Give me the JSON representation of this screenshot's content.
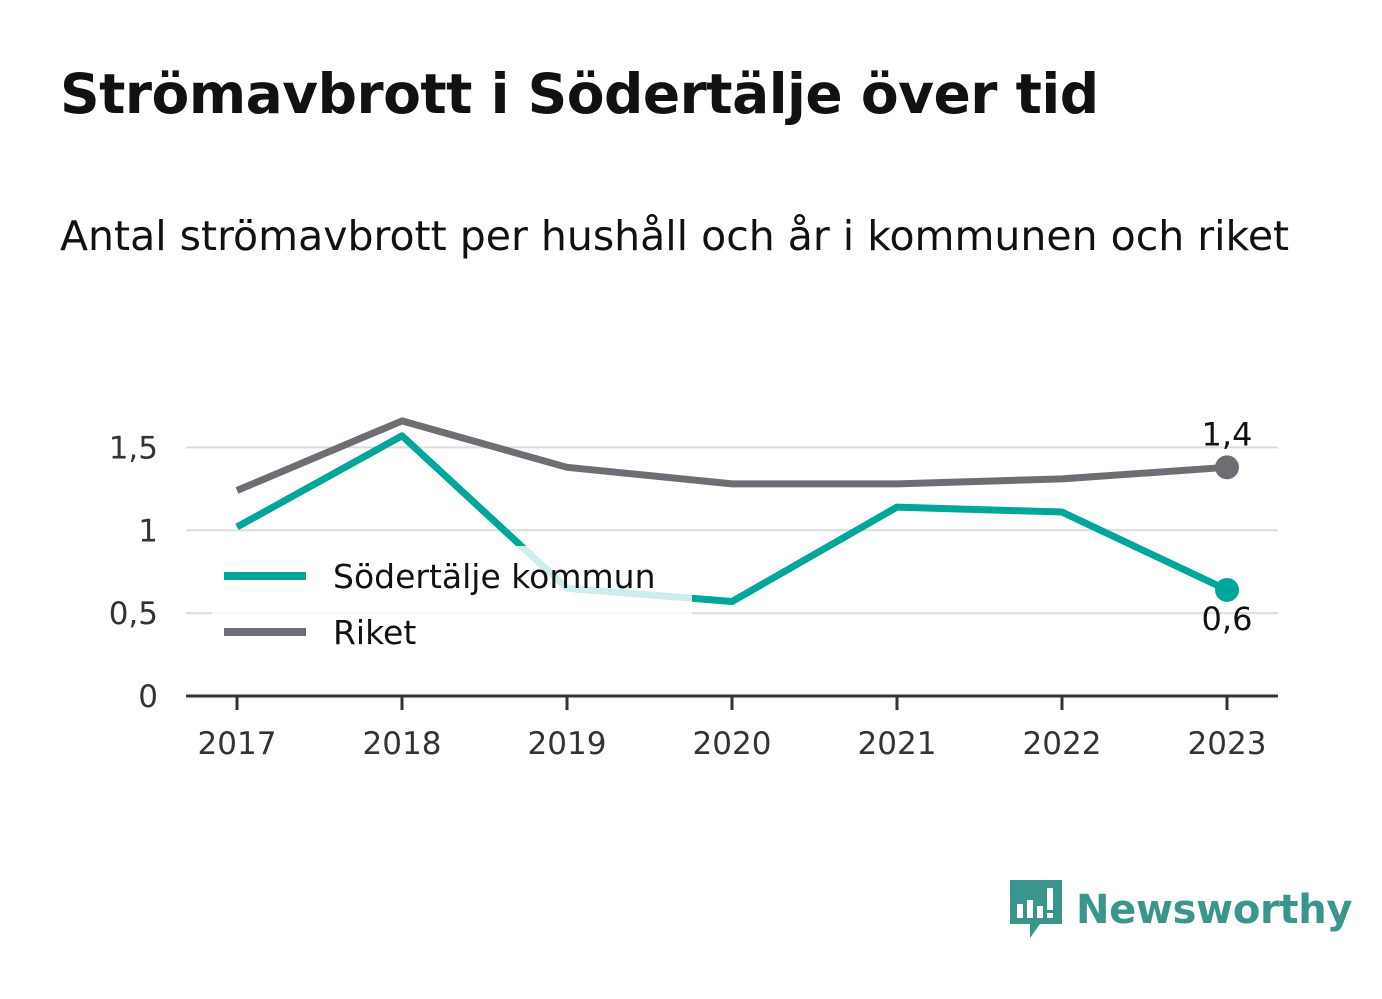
{
  "title": "Strömavbrott i Södertälje över tid",
  "subtitle": "Antal strömavbrott per hushåll och år i kommunen och riket",
  "brand": {
    "name": "Newsworthy",
    "color": "#3a958c",
    "icon": "bar-chart-speech-bubble-icon"
  },
  "chart_data": {
    "type": "line",
    "title": "",
    "xlabel": "",
    "ylabel": "",
    "x": [
      "2017",
      "2018",
      "2019",
      "2020",
      "2021",
      "2022",
      "2023"
    ],
    "ylim": [
      0,
      1.75
    ],
    "yticks": [
      0,
      0.5,
      1,
      1.5
    ],
    "ytick_labels": [
      "0",
      "0,5",
      "1",
      "1,5"
    ],
    "grid": true,
    "legend": "inside-left",
    "series": [
      {
        "name": "Södertälje kommun",
        "color": "#00a69a",
        "values": [
          1.02,
          1.57,
          0.65,
          0.57,
          1.14,
          1.11,
          0.64
        ],
        "end_label": "0,6"
      },
      {
        "name": "Riket",
        "color": "#6e6d74",
        "values": [
          1.24,
          1.66,
          1.38,
          1.28,
          1.28,
          1.31,
          1.38
        ],
        "end_label": "1,4"
      }
    ]
  }
}
